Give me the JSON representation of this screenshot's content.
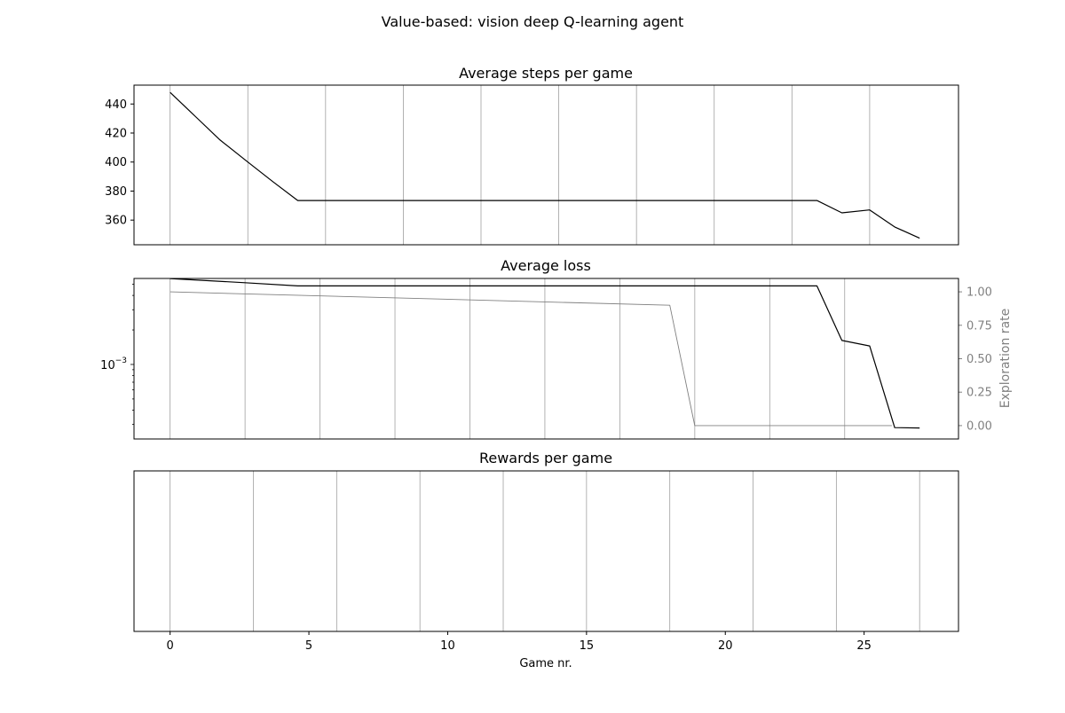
{
  "figure_title": "Value-based: vision deep Q-learning agent",
  "chart_data": [
    {
      "type": "line",
      "title": "Average steps per game",
      "xlabel": "",
      "ylabel": "",
      "x_domain": [
        -1.3,
        28.4
      ],
      "ylim": [
        343,
        453
      ],
      "y_ticks": [
        360,
        380,
        400,
        420,
        440
      ],
      "y_tick_labels": [
        "360",
        "380",
        "400",
        "420",
        "440"
      ],
      "grid_x": [
        0,
        2.8,
        5.6,
        8.4,
        11.2,
        14,
        16.8,
        19.6,
        22.4,
        25.2
      ],
      "series": [
        {
          "color": "#000000",
          "x": [
            0,
            0.9,
            1.8,
            2.8,
            3.7,
            4.6,
            23.3,
            24.2,
            25.2,
            26.1,
            27
          ],
          "y": [
            448,
            431.6,
            415.2,
            400,
            386.5,
            373.5,
            373.5,
            365,
            367,
            355.3,
            347.5
          ]
        }
      ]
    },
    {
      "type": "line",
      "title": "Average loss",
      "xlabel": "",
      "ylabel": "",
      "y_scale": "log",
      "x_domain": [
        -1.3,
        28.4
      ],
      "y_decades_visible": [
        -3.65,
        -2.25
      ],
      "y_ticks_major": [
        0.001
      ],
      "y_tick_labels": [
        "10−3"
      ],
      "grid_x": [
        0,
        2.7,
        5.4,
        8.1,
        10.8,
        13.5,
        16.2,
        18.9,
        21.6,
        24.3
      ],
      "series": [
        {
          "color": "#000000",
          "x": [
            0,
            2.7,
            4.6,
            23.3,
            24.2,
            25.2,
            26.1,
            27
          ],
          "y": [
            0.00561,
            0.00516,
            0.00484,
            0.00484,
            0.00162,
            0.00145,
            0.000281,
            0.000279
          ]
        }
      ],
      "secondary_axis": {
        "ylabel": "Exploration rate",
        "ylim": [
          -0.1,
          1.1
        ],
        "y_ticks": [
          0,
          0.25,
          0.5,
          0.75,
          1
        ],
        "y_tick_labels": [
          "0.00",
          "0.25",
          "0.50",
          "0.75",
          "1.00"
        ],
        "color": "#808080",
        "series": [
          {
            "color": "#808080",
            "x": [
              0,
              18,
              18.9,
              26
            ],
            "y": [
              1,
              0.9,
              0,
              0
            ]
          }
        ]
      }
    },
    {
      "type": "line",
      "title": "Rewards per game",
      "xlabel": "Game nr.",
      "ylabel": "",
      "x_domain": [
        -1.3,
        28.4
      ],
      "x_ticks": [
        0,
        5,
        10,
        15,
        20,
        25
      ],
      "x_tick_labels": [
        "0",
        "5",
        "10",
        "15",
        "20",
        "25"
      ],
      "grid_x": [
        0,
        3,
        6,
        9,
        12,
        15,
        18,
        21,
        24,
        27
      ],
      "series": []
    }
  ]
}
